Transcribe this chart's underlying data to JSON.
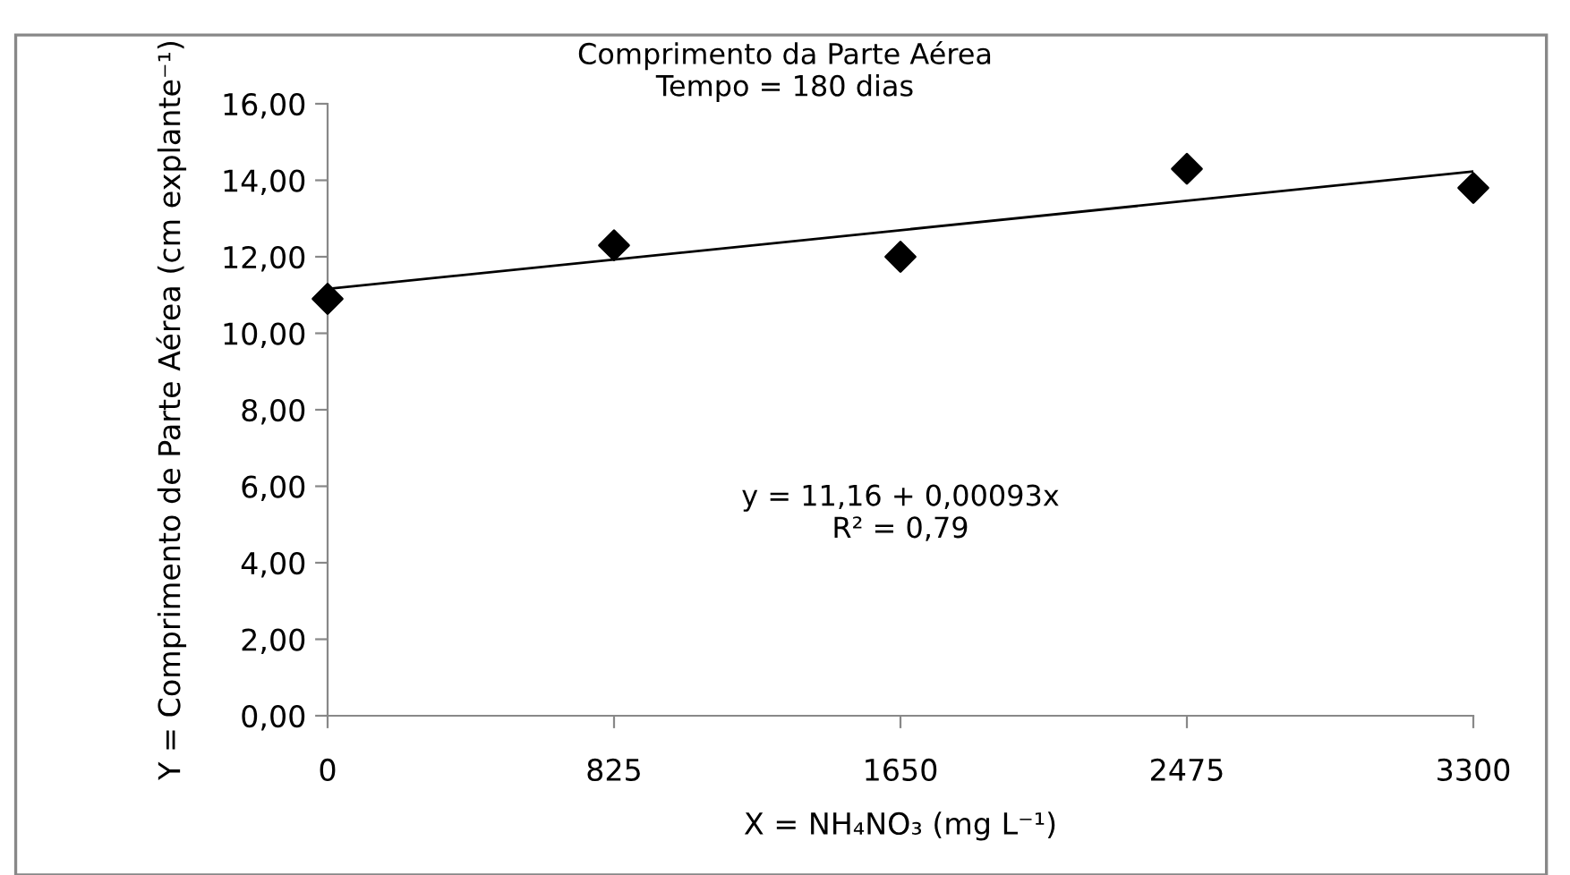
{
  "chart_data": {
    "type": "scatter",
    "title": "Comprimento da Parte Aérea",
    "subtitle": "Tempo = 180 dias",
    "xlabel": "X = NH₄NO₃ (mg L⁻¹)",
    "ylabel": "Y = Comprimento de Parte Aérea (cm explante⁻¹)",
    "x": [
      0,
      825,
      1650,
      2475,
      3300
    ],
    "series": [
      {
        "color": "#000000",
        "marker": "diamond",
        "values": [
          10.9,
          12.3,
          12.0,
          14.3,
          13.8
        ]
      },
      {
        "type": "line",
        "color": "#000000",
        "marker": "none",
        "line_style": "solid",
        "x": [
          0,
          3300
        ],
        "values": [
          11.16,
          14.23
        ]
      }
    ],
    "annotations": [
      "y = 11,16 + 0,00093x\nR² = 0,79"
    ],
    "xlim": [
      0,
      3300
    ],
    "xticks": [
      0,
      825,
      1650,
      2475,
      3300
    ],
    "ylim": [
      0,
      16
    ],
    "yticks": [
      {
        "value": 0,
        "label": "0,00"
      },
      {
        "value": 2,
        "label": "2,00"
      },
      {
        "value": 4,
        "label": "4,00"
      },
      {
        "value": 6,
        "label": "6,00"
      },
      {
        "value": 8,
        "label": "8,00"
      },
      {
        "value": 10,
        "label": "10,00"
      },
      {
        "value": 12,
        "label": "12,00"
      },
      {
        "value": 14,
        "label": "14,00"
      },
      {
        "value": 16,
        "label": "16,00"
      }
    ],
    "grid": false,
    "legend": false
  }
}
